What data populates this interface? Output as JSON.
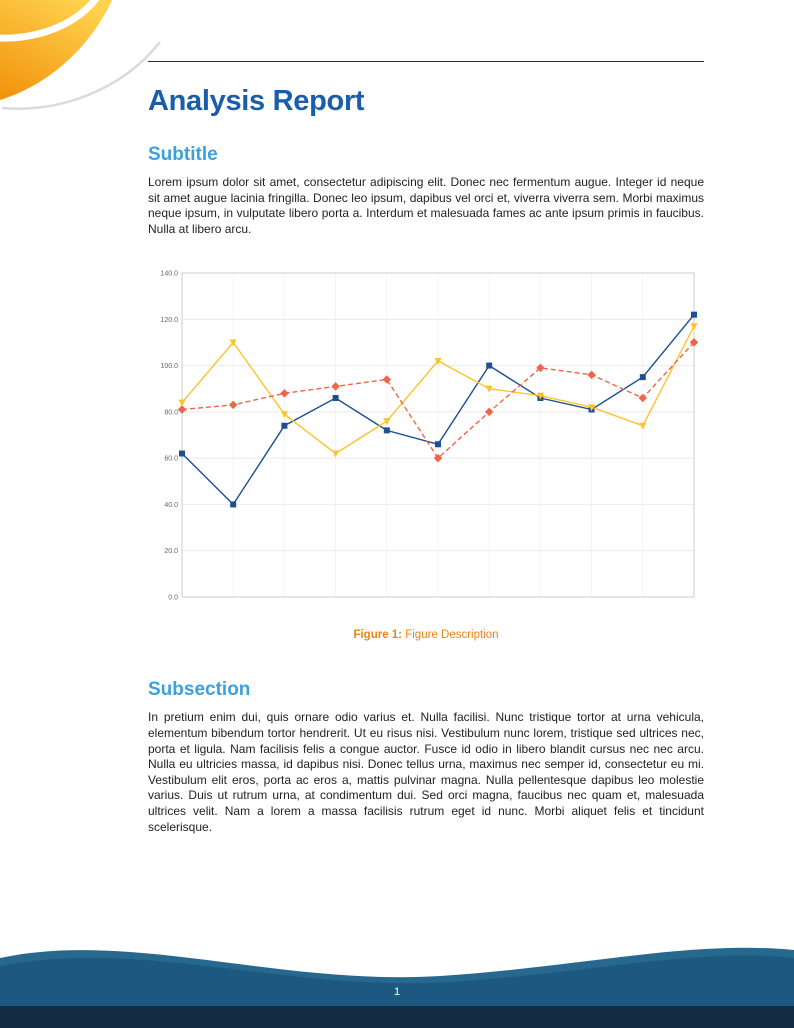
{
  "page": {
    "title": "Analysis Report",
    "page_number": "1"
  },
  "sections": [
    {
      "heading": "Subtitle",
      "body": "Lorem ipsum dolor sit amet, consectetur adipiscing elit. Donec nec fermentum augue. Integer id neque sit amet augue lacinia fringilla. Donec leo ipsum, dapibus vel orci et, viverra viverra sem. Morbi maximus neque ipsum, in vulputate libero porta a. Interdum et malesuada fames ac ante ipsum primis in faucibus. Nulla at libero arcu."
    },
    {
      "heading": "Subsection",
      "body": "In pretium enim dui, quis ornare odio varius et. Nulla facilisi. Nunc tristique tortor at urna vehicula, elementum bibendum tortor hendrerit. Ut eu risus nisi. Vestibulum nunc lorem, tristique sed ultrices nec, porta et ligula. Nam facilisis felis a congue auctor. Fusce id odio in libero blandit cursus nec nec arcu. Nulla eu ultricies massa, id dapibus nisi. Donec tellus urna, maximus nec semper id, consectetur eu mi. Vestibulum elit eros, porta ac eros a, mattis pulvinar magna. Nulla pellentesque dapibus leo molestie varius. Duis ut rutrum urna, at condimentum dui. Sed orci magna, faucibus nec quam et, malesuada ultrices velit. Nam a lorem a massa facilisis rutrum eget id nunc. Morbi aliquet felis et tincidunt scelerisque."
    }
  ],
  "figure": {
    "caption_label": "Figure 1:",
    "caption_text": "Figure Description"
  },
  "chart_data": {
    "type": "line",
    "title": "",
    "xlabel": "",
    "ylabel": "",
    "x": [
      1,
      2,
      3,
      4,
      5,
      6,
      7,
      8,
      9,
      10,
      11
    ],
    "ylim": [
      0,
      140
    ],
    "y_ticks": [
      "0.0",
      "20.0",
      "40.0",
      "60.0",
      "80.0",
      "100.0",
      "120.0",
      "140.0"
    ],
    "grid": true,
    "legend_position": "none",
    "series": [
      {
        "name": "series-blue",
        "color": "#1d4f91",
        "line_style": "solid",
        "marker": "square",
        "values": [
          62,
          40,
          74,
          86,
          72,
          66,
          100,
          86,
          81,
          95,
          122
        ]
      },
      {
        "name": "series-yellow",
        "color": "#fdc32b",
        "line_style": "solid",
        "marker": "triangle-down",
        "values": [
          84,
          110,
          79,
          62,
          76,
          102,
          90,
          87,
          82,
          74,
          117
        ]
      },
      {
        "name": "series-red",
        "color": "#ef6548",
        "line_style": "dashed",
        "marker": "diamond",
        "values": [
          81,
          83,
          88,
          91,
          94,
          60,
          80,
          99,
          96,
          86,
          110
        ]
      }
    ]
  },
  "colors": {
    "heading_primary": "#1a5dab",
    "heading_secondary": "#3ba1dc",
    "caption": "#ee8312",
    "footer_wave": "#1d5880",
    "footer_bar": "#132c42",
    "decoration_orange": "#f5a21b"
  }
}
